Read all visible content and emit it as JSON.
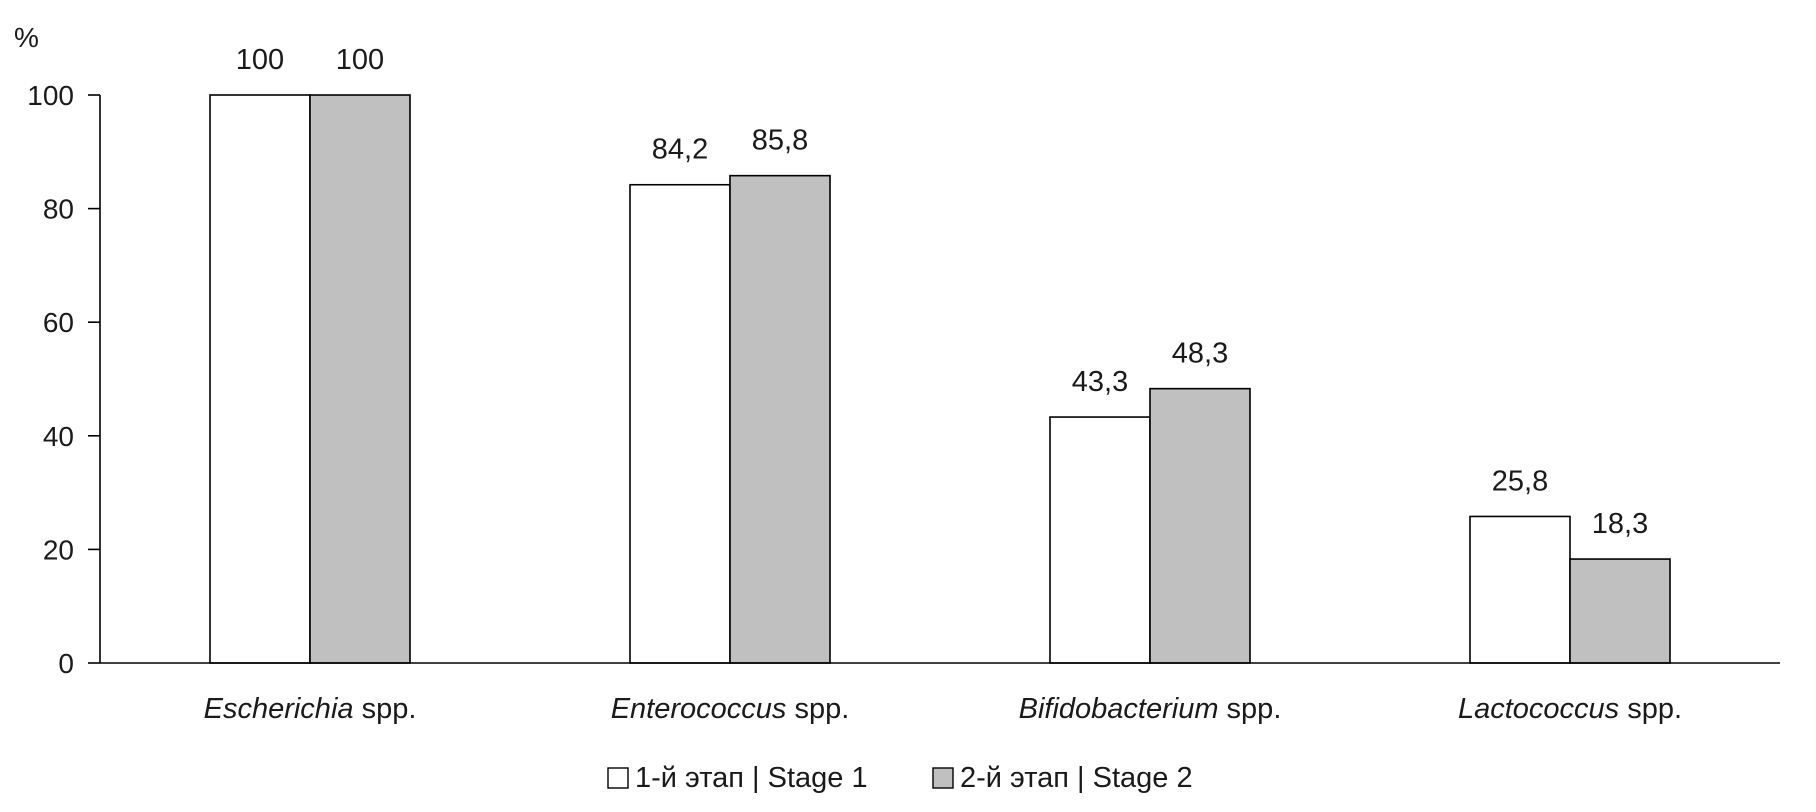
{
  "chart_data": {
    "type": "bar",
    "unit_label": "%",
    "categories": [
      {
        "genus": "Escherichia",
        "suffix": " spp."
      },
      {
        "genus": "Enterococcus",
        "suffix": " spp."
      },
      {
        "genus": "Bifidobacterium",
        "suffix": " spp."
      },
      {
        "genus": "Lactococcus",
        "suffix": " spp."
      }
    ],
    "series": [
      {
        "name": "1-й этап | Stage 1",
        "color": "#ffffff",
        "values": [
          100,
          84.2,
          43.3,
          25.8
        ],
        "labels": [
          "100",
          "84,2",
          "43,3",
          "25,8"
        ]
      },
      {
        "name": "2-й этап | Stage 2",
        "color": "#c0c0c0",
        "values": [
          100,
          85.8,
          48.3,
          18.3
        ],
        "labels": [
          "100",
          "85,8",
          "48,3",
          "18,3"
        ]
      }
    ],
    "ylim": [
      0,
      100
    ],
    "yticks": [
      0,
      20,
      40,
      60,
      80,
      100
    ],
    "ytick_labels": [
      "0",
      "20",
      "40",
      "60",
      "80",
      "100"
    ],
    "grid": false,
    "legend_position": "bottom-center"
  }
}
